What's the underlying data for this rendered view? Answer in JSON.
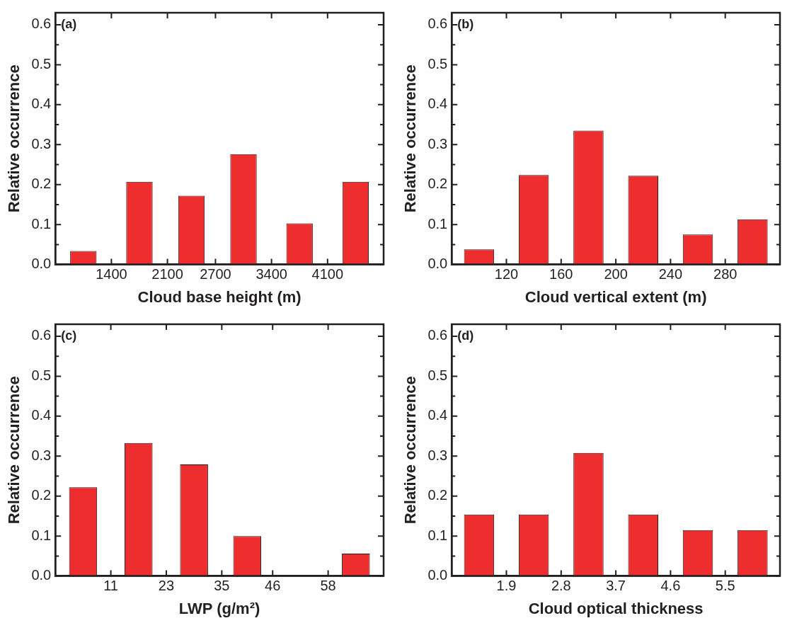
{
  "chart_data": [
    {
      "type": "bar",
      "x": [
        1050,
        1750,
        2400,
        3050,
        3750,
        4450
      ],
      "values": [
        0.034,
        0.207,
        0.172,
        0.276,
        0.103,
        0.207
      ],
      "color": "#ed2d2e",
      "xlim": [
        700,
        4800
      ],
      "xticks": [
        1400,
        2100,
        2700,
        3400,
        4100
      ],
      "ylim": [
        0,
        0.63
      ],
      "yticks": [
        {
          "value": 0,
          "label": "0.0"
        },
        {
          "value": 0.05,
          "label": null
        },
        0.1,
        {
          "value": 0.15,
          "label": null
        },
        0.2,
        {
          "value": 0.25,
          "label": null
        },
        0.3,
        {
          "value": 0.35,
          "label": null
        },
        0.4,
        {
          "value": 0.45,
          "label": null
        },
        0.5,
        {
          "value": 0.55,
          "label": null
        },
        0.6
      ],
      "xlabel": "Cloud base height (m)",
      "ylabel": "Relative occurrence",
      "annotations": [
        "(a)"
      ]
    },
    {
      "type": "bar",
      "x": [
        100,
        140,
        180,
        220,
        260,
        300
      ],
      "values": [
        0.038,
        0.224,
        0.335,
        0.222,
        0.075,
        0.113
      ],
      "color": "#ed2d2e",
      "xlim": [
        80,
        320
      ],
      "xticks": [
        120,
        160,
        200,
        240,
        280
      ],
      "ylim": [
        0,
        0.63
      ],
      "yticks": [
        {
          "value": 0,
          "label": "0.0"
        },
        {
          "value": 0.05,
          "label": null
        },
        0.1,
        {
          "value": 0.15,
          "label": null
        },
        0.2,
        {
          "value": 0.25,
          "label": null
        },
        0.3,
        {
          "value": 0.35,
          "label": null
        },
        0.4,
        {
          "value": 0.45,
          "label": null
        },
        0.5,
        {
          "value": 0.55,
          "label": null
        },
        0.6
      ],
      "xlabel": "Cloud vertical extent (m)",
      "ylabel": "Relative occurrence",
      "annotations": [
        "(b)"
      ]
    },
    {
      "type": "bar",
      "x": [
        5,
        17,
        29,
        40.5,
        52,
        64
      ],
      "values": [
        0.222,
        0.333,
        0.279,
        0.1,
        0,
        0.056
      ],
      "color": "#ed2d2e",
      "xlim": [
        -1,
        70
      ],
      "xticks": [
        11,
        23,
        35,
        46,
        58
      ],
      "ylim": [
        0,
        0.63
      ],
      "yticks": [
        {
          "value": 0,
          "label": "0.0"
        },
        {
          "value": 0.05,
          "label": null
        },
        0.1,
        {
          "value": 0.15,
          "label": null
        },
        0.2,
        {
          "value": 0.25,
          "label": null
        },
        0.3,
        {
          "value": 0.35,
          "label": null
        },
        0.4,
        {
          "value": 0.45,
          "label": null
        },
        0.5,
        {
          "value": 0.55,
          "label": null
        },
        0.6
      ],
      "xlabel": "LWP (g/m²)",
      "ylabel": "Relative occurrence",
      "annotations": [
        "(c)"
      ]
    },
    {
      "type": "bar",
      "x": [
        1.45,
        2.35,
        3.25,
        4.15,
        5.05,
        5.95
      ],
      "values": [
        0.154,
        0.154,
        0.308,
        0.154,
        0.115,
        0.115
      ],
      "color": "#ed2d2e",
      "xlim": [
        1.0,
        6.4
      ],
      "xticks": [
        1.9,
        2.8,
        3.7,
        4.6,
        5.5
      ],
      "ylim": [
        0,
        0.63
      ],
      "yticks": [
        {
          "value": 0,
          "label": "0.0"
        },
        {
          "value": 0.05,
          "label": null
        },
        0.1,
        {
          "value": 0.15,
          "label": null
        },
        0.2,
        {
          "value": 0.25,
          "label": null
        },
        0.3,
        {
          "value": 0.35,
          "label": null
        },
        0.4,
        {
          "value": 0.45,
          "label": null
        },
        0.5,
        {
          "value": 0.55,
          "label": null
        },
        0.6
      ],
      "xlabel": "Cloud optical thickness",
      "ylabel": "Relative occurrence",
      "annotations": [
        "(d)"
      ]
    }
  ]
}
